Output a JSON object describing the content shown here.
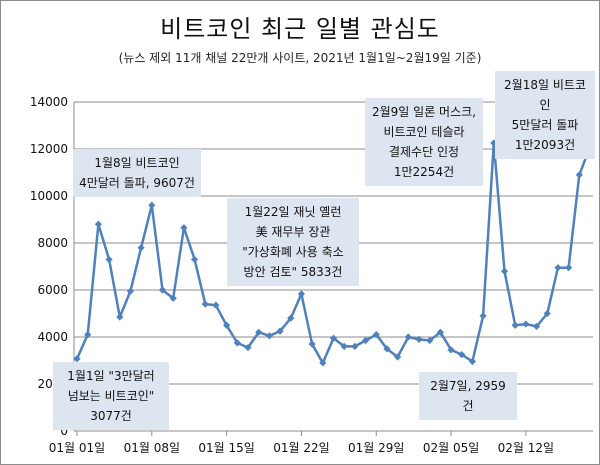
{
  "chart_data": {
    "type": "line",
    "title": "비트코인 최근 일별 관심도",
    "subtitle": "(뉴스 제외 11개 채널 22만개 사이트, 2021년 1월1일~2월19일 기준)",
    "xlabel": "",
    "ylabel": "",
    "ylim": [
      0,
      14000
    ],
    "yticks": [
      0,
      2000,
      4000,
      6000,
      8000,
      10000,
      12000,
      14000
    ],
    "ytick_labels": [
      "0",
      "2000",
      "4000",
      "6000",
      "8000",
      "10000",
      "12000",
      "14000"
    ],
    "grid": true,
    "line_color": "#4f81bd",
    "marker_color": "#4f81bd",
    "x_tick_labels": [
      {
        "index": 0,
        "label": "01월 01일"
      },
      {
        "index": 7,
        "label": "01월 08일"
      },
      {
        "index": 14,
        "label": "01월 15일"
      },
      {
        "index": 21,
        "label": "01월 22일"
      },
      {
        "index": 28,
        "label": "01월 29일"
      },
      {
        "index": 35,
        "label": "02월 05일"
      },
      {
        "index": 42,
        "label": "02월 12일"
      }
    ],
    "series": [
      {
        "name": "비트코인 일별 관심도",
        "values": [
          3077,
          4100,
          8800,
          7300,
          4850,
          5950,
          7800,
          9607,
          6000,
          5650,
          8650,
          7300,
          5400,
          5350,
          4500,
          3750,
          3550,
          4200,
          4050,
          4250,
          4800,
          5833,
          3700,
          2900,
          3950,
          3600,
          3600,
          3850,
          4100,
          3500,
          3150,
          4000,
          3900,
          3850,
          4200,
          3450,
          3250,
          2959,
          4900,
          12254,
          6800,
          4500,
          4550,
          4450,
          5000,
          6950,
          6950,
          10900,
          12093
        ]
      }
    ],
    "annotations": [
      {
        "id": "jan1",
        "lines": [
          "1월1일 \"3만달러",
          "넘보는 비트코인\"",
          "3077건"
        ]
      },
      {
        "id": "jan8",
        "lines": [
          "1월8일 비트코인",
          "4만달러 돌파, 9607건"
        ]
      },
      {
        "id": "jan22",
        "lines": [
          "1월22일 재닛 옐런",
          "美 재무부 장관",
          "\"가상화폐 사용 축소",
          "방안 검토\" 5833건"
        ]
      },
      {
        "id": "feb9",
        "lines": [
          "2월9일 일론 머스크,",
          "비트코인 테슬라",
          "결제수단 인정",
          "1만2254건"
        ]
      },
      {
        "id": "feb7",
        "lines": [
          "2월7일, 2959건"
        ]
      },
      {
        "id": "feb18",
        "lines": [
          "2월18일 비트코인",
          "5만달러 돌파",
          "1만2093건"
        ]
      }
    ]
  }
}
